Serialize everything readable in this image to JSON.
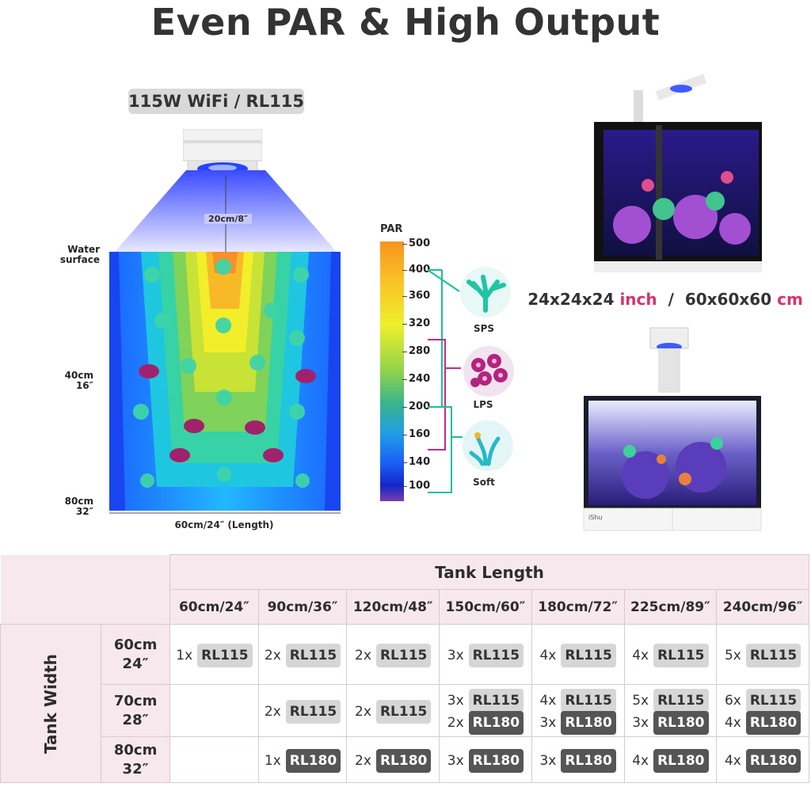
{
  "title": "Even PAR & High Output",
  "model_tag": "115W WiFi / RL115",
  "diagram": {
    "height_label": "20cm/8″",
    "water_surface": [
      "Water",
      "surface"
    ],
    "depth_40": [
      "40cm",
      "16″"
    ],
    "depth_80": [
      "80cm",
      "32″"
    ],
    "length_label": "60cm/24″ (Length)"
  },
  "par_scale": {
    "title": "PAR",
    "ticks": [
      "500",
      "400",
      "360",
      "320",
      "280",
      "240",
      "200",
      "160",
      "140",
      "100"
    ]
  },
  "corals": [
    {
      "label": "SPS",
      "icon": "sps-coral-icon"
    },
    {
      "label": "LPS",
      "icon": "lps-coral-icon"
    },
    {
      "label": "Soft",
      "icon": "soft-coral-icon"
    }
  ],
  "tank_dims": {
    "inch": "24x24x24",
    "inch_unit": "inch",
    "sep": "/",
    "cm": "60x60x60",
    "cm_unit": "cm"
  },
  "tank_brand": "iShu",
  "table": {
    "col_header": "Tank Length",
    "row_header": "Tank Width",
    "lengths": [
      "60cm/24″",
      "90cm/36″",
      "120cm/48″",
      "150cm/60″",
      "180cm/72″",
      "225cm/89″",
      "240cm/96″"
    ],
    "rows": [
      {
        "width": [
          "60cm",
          "24″"
        ],
        "cells": [
          [
            {
              "n": "1x",
              "m": "RL115"
            }
          ],
          [
            {
              "n": "2x",
              "m": "RL115"
            }
          ],
          [
            {
              "n": "2x",
              "m": "RL115"
            }
          ],
          [
            {
              "n": "3x",
              "m": "RL115"
            }
          ],
          [
            {
              "n": "4x",
              "m": "RL115"
            }
          ],
          [
            {
              "n": "4x",
              "m": "RL115"
            }
          ],
          [
            {
              "n": "5x",
              "m": "RL115"
            }
          ]
        ]
      },
      {
        "width": [
          "70cm",
          "28″"
        ],
        "cells": [
          [],
          [
            {
              "n": "2x",
              "m": "RL115"
            }
          ],
          [
            {
              "n": "2x",
              "m": "RL115"
            }
          ],
          [
            {
              "n": "3x",
              "m": "RL115"
            },
            {
              "n": "2x",
              "m": "RL180"
            }
          ],
          [
            {
              "n": "4x",
              "m": "RL115"
            },
            {
              "n": "3x",
              "m": "RL180"
            }
          ],
          [
            {
              "n": "5x",
              "m": "RL115"
            },
            {
              "n": "3x",
              "m": "RL180"
            }
          ],
          [
            {
              "n": "6x",
              "m": "RL115"
            },
            {
              "n": "4x",
              "m": "RL180"
            }
          ]
        ]
      },
      {
        "width": [
          "80cm",
          "32″"
        ],
        "cells": [
          [],
          [
            {
              "n": "1x",
              "m": "RL180"
            }
          ],
          [
            {
              "n": "2x",
              "m": "RL180"
            }
          ],
          [
            {
              "n": "3x",
              "m": "RL180"
            }
          ],
          [
            {
              "n": "3x",
              "m": "RL180"
            }
          ],
          [
            {
              "n": "4x",
              "m": "RL180"
            }
          ],
          [
            {
              "n": "4x",
              "m": "RL180"
            }
          ]
        ]
      }
    ]
  },
  "colors": {
    "accent_pink": "#d6336c",
    "header_bg": "#f6e8ed",
    "rl115_bg": "#d6d6d6",
    "rl180_bg": "#555555"
  }
}
